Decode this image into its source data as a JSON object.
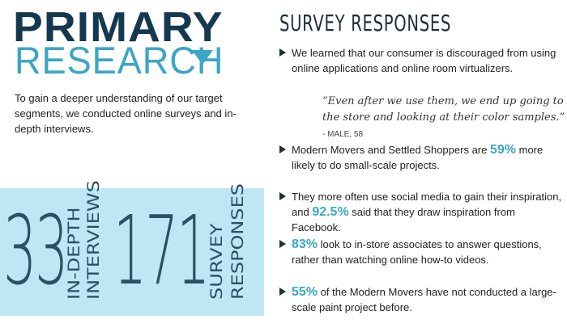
{
  "header": {
    "title_line1": "PRIMARY",
    "title_line2": "RESEARCH"
  },
  "intro": "To gain a deeper understanding of our target segments, we conducted online surveys and in-depth interviews.",
  "stats": [
    {
      "number": "33",
      "label_line1": "IN-DEPTH",
      "label_line2": "INTERVIEWS"
    },
    {
      "number": "171",
      "label_line1": "SURVEY",
      "label_line2": "RESPONSES"
    }
  ],
  "survey": {
    "heading": "SURVEY RESPONSES",
    "bullet1": "We learned that our consumer is discouraged from using online applications and online room virtualizers.",
    "quote": "“Even after we use them, we end up going to the store and looking at their color samples.”",
    "quote_attr": "- MALE, 58",
    "bullet2": {
      "pre": "Modern Movers and Settled Shoppers are ",
      "pct": "59%",
      "post": " more likely to do small-scale projects."
    },
    "bullet3": {
      "pre": "They more often use social media to gain their inspiration, and ",
      "pct": "92.5%",
      "post": " said that they draw inspiration from Facebook."
    },
    "bullet4": {
      "pre": "",
      "pct": "83%",
      "post": " look to in-store associates to answer questions, rather than watching online how-to videos."
    },
    "bullet5": {
      "pre": "",
      "pct": "55%",
      "post": " of the Modern Movers have not conducted a large-scale paint project before."
    }
  },
  "colors": {
    "navy": "#14394f",
    "accent": "#3ba6c4",
    "box": "#bfe6f5"
  }
}
